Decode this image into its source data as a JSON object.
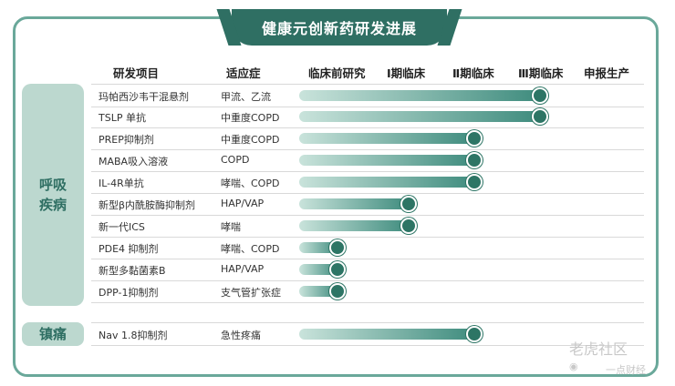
{
  "title": "健康元创新药研发进展",
  "headers": {
    "project": "研发项目",
    "indication": "适应症",
    "stages": [
      "临床前研究",
      "Ⅰ期临床",
      "Ⅱ期临床",
      "Ⅲ期临床",
      "申报生产"
    ]
  },
  "categories": {
    "respiratory": "呼吸疾病",
    "analgesic": "镇痛"
  },
  "colors": {
    "frame": "#6aa89a",
    "dark_green": "#2f6f63",
    "category_bg": "#bcd8cf",
    "dot": "#2d7565"
  },
  "chart_data": {
    "type": "bar",
    "orientation": "horizontal",
    "title": "健康元创新药研发进展",
    "stages": [
      "临床前研究",
      "Ⅰ期临床",
      "Ⅱ期临床",
      "Ⅲ期临床",
      "申报生产"
    ],
    "rows": [
      {
        "category": "呼吸疾病",
        "project": "玛帕西沙韦干混悬剂",
        "indication": "甲流、乙流",
        "progress": 3.5
      },
      {
        "category": "呼吸疾病",
        "project": "TSLP 单抗",
        "indication": "中重度COPD",
        "progress": 3.5
      },
      {
        "category": "呼吸疾病",
        "project": "PREP抑制剂",
        "indication": "中重度COPD",
        "progress": 2.5
      },
      {
        "category": "呼吸疾病",
        "project": "MABA吸入溶液",
        "indication": "COPD",
        "progress": 2.5
      },
      {
        "category": "呼吸疾病",
        "project": "IL-4R单抗",
        "indication": "哮喘、COPD",
        "progress": 2.5
      },
      {
        "category": "呼吸疾病",
        "project": "新型β内酰胺酶抑制剂",
        "indication": "HAP/VAP",
        "progress": 1.5
      },
      {
        "category": "呼吸疾病",
        "project": "新一代ICS",
        "indication": "哮喘",
        "progress": 1.5
      },
      {
        "category": "呼吸疾病",
        "project": "PDE4 抑制剂",
        "indication": "哮喘、COPD",
        "progress": 0.5
      },
      {
        "category": "呼吸疾病",
        "project": "新型多黏菌素B",
        "indication": "HAP/VAP",
        "progress": 0.5
      },
      {
        "category": "呼吸疾病",
        "project": "DPP-1抑制剂",
        "indication": "支气管扩张症",
        "progress": 0.5
      },
      {
        "category": "镇痛",
        "project": "Nav 1.8抑制剂",
        "indication": "急性疼痛",
        "progress": 2.5
      }
    ]
  },
  "watermark": {
    "text": "老虎社区",
    "sub": "一点财经"
  }
}
